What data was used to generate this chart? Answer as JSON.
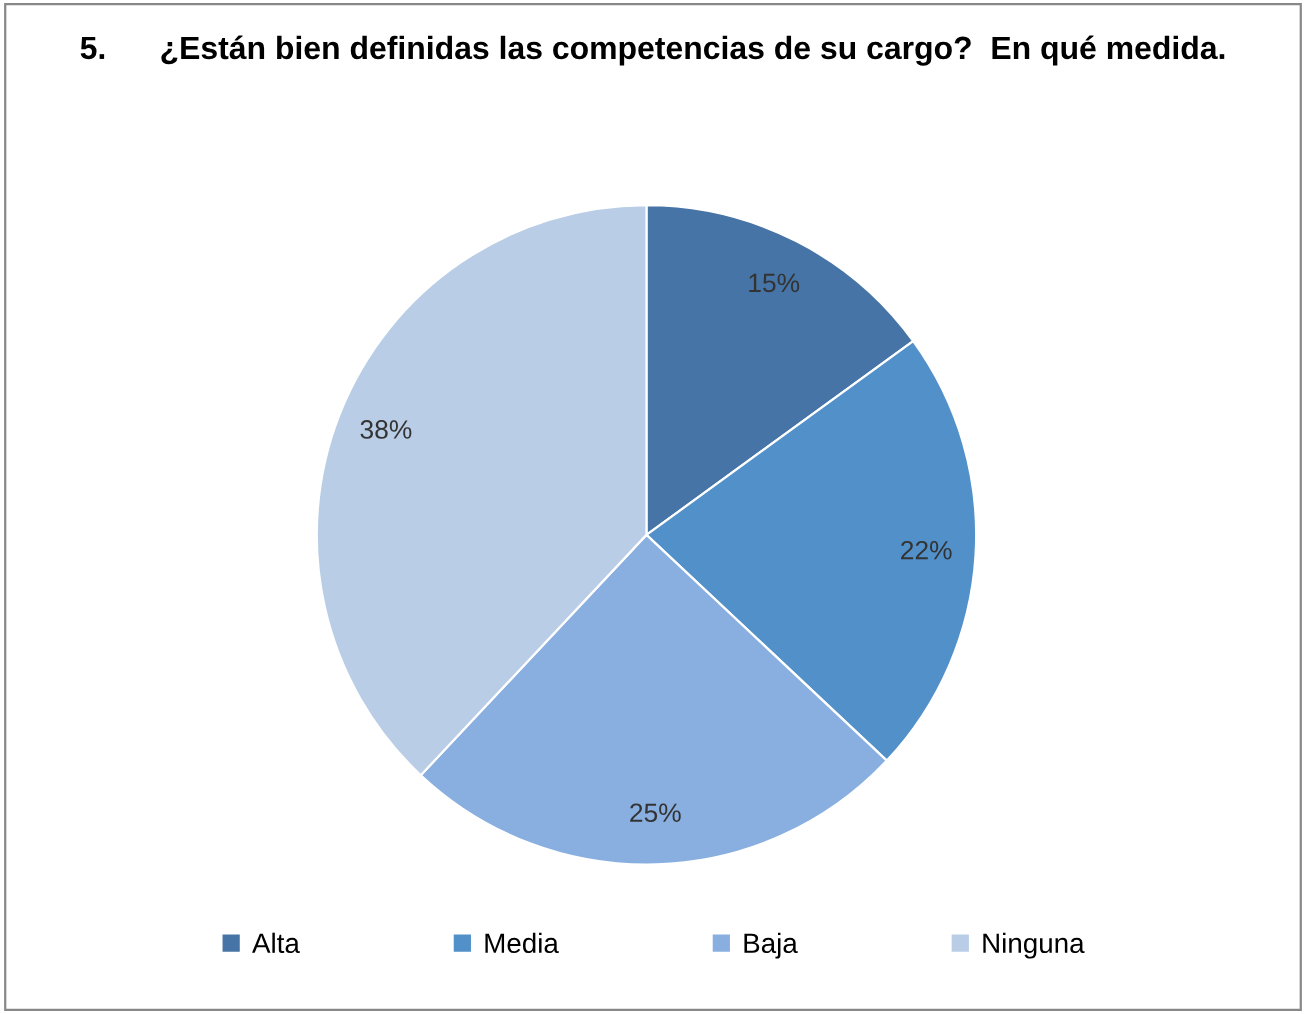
{
  "chart_data": {
    "type": "pie",
    "title": "5.      ¿Están bien definidas las competencias de su cargo?  En qué medida.",
    "categories": [
      "Alta",
      "Media",
      "Baja",
      "Ninguna"
    ],
    "values": [
      15,
      22,
      25,
      38
    ],
    "value_labels": [
      "15%",
      "22%",
      "25%",
      "38%"
    ],
    "colors": [
      "#4674a6",
      "#5190c9",
      "#88afe0",
      "#b9cde6"
    ],
    "legend": "bottom"
  }
}
